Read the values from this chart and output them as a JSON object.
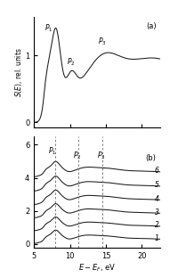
{
  "xlim": [
    5,
    22.5
  ],
  "xlabel": "$E - E_F$, eV",
  "ylabel_a": "$S(E)$, rel. units",
  "panel_a_label": "(a)",
  "panel_b_label": "(b)",
  "yticks_a": [
    0,
    1
  ],
  "yticks_b": [
    0,
    2,
    4,
    6
  ],
  "dashed_lines_b": [
    8.0,
    11.2,
    14.5
  ],
  "line_color": "#1a1a1a",
  "background_color": "#ffffff",
  "xticks": [
    5,
    10,
    15,
    20
  ]
}
